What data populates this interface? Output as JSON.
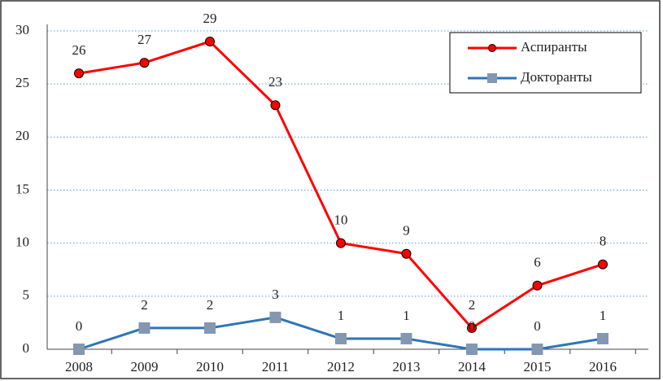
{
  "chart_data": {
    "type": "line",
    "categories": [
      "2008",
      "2009",
      "2010",
      "2011",
      "2012",
      "2013",
      "2014",
      "2015",
      "2016"
    ],
    "series": [
      {
        "name": "Аспиранты",
        "color": "#ff0000",
        "marker": "circle",
        "values": [
          26,
          27,
          29,
          23,
          10,
          9,
          2,
          6,
          8
        ]
      },
      {
        "name": "Докторанты",
        "color": "#2e75b6",
        "marker": "square",
        "values": [
          0,
          2,
          2,
          3,
          1,
          1,
          0,
          0,
          1
        ]
      }
    ],
    "ylim": [
      0,
      30
    ],
    "yticks": [
      0,
      5,
      10,
      15,
      20,
      25,
      30
    ],
    "grid": true,
    "legend": "upper right"
  }
}
